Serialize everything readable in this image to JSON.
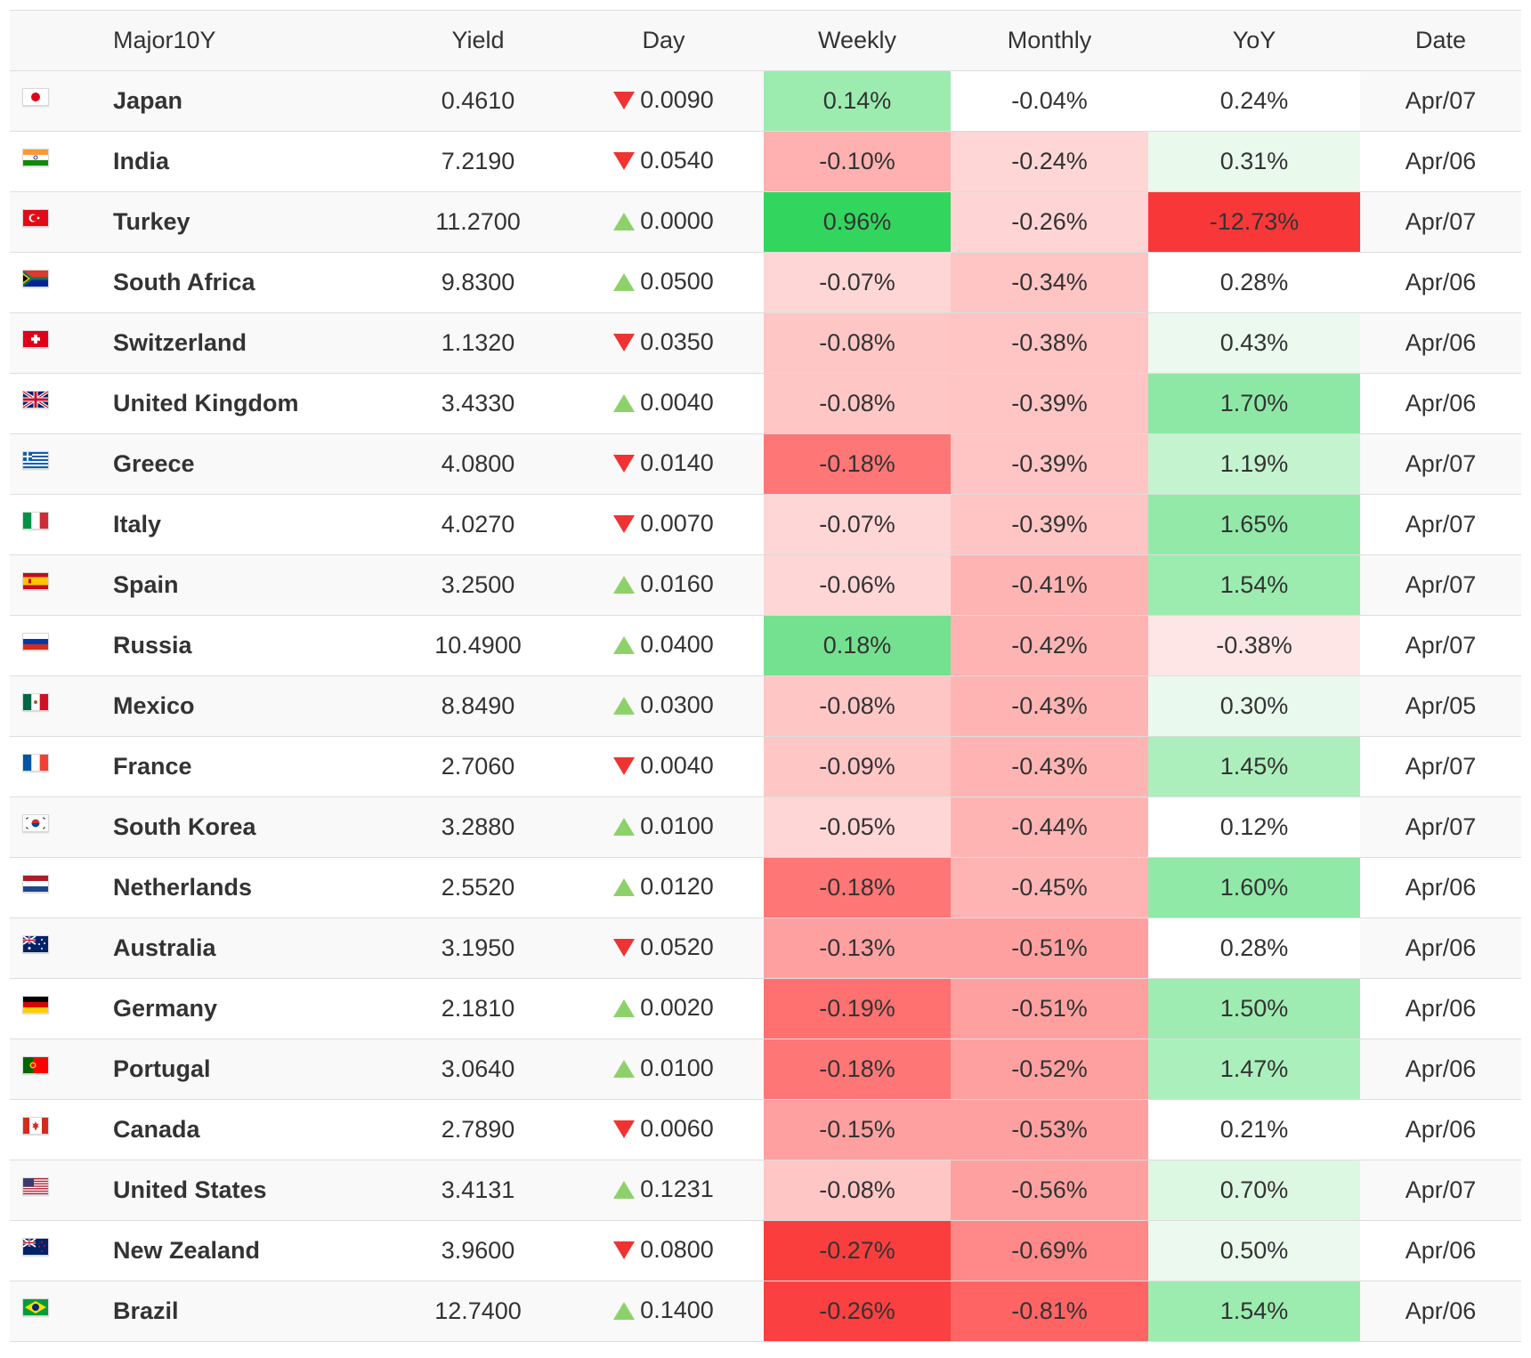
{
  "columns": [
    "Major10Y",
    "Yield",
    "Day",
    "Weekly",
    "Monthly",
    "YoY",
    "Date"
  ],
  "rows": [
    {
      "country": "Japan",
      "flag": "japan-flag-icon",
      "yield": "0.4610",
      "day_dir": "down",
      "day": "0.0090",
      "weekly": "0.14%",
      "weekly_bg": "#9cecb0",
      "monthly": "-0.04%",
      "monthly_bg": "#ffffff",
      "yoy": "0.24%",
      "yoy_bg": "#ffffff",
      "date": "Apr/07"
    },
    {
      "country": "India",
      "flag": "india-flag-icon",
      "yield": "7.2190",
      "day_dir": "down",
      "day": "0.0540",
      "weekly": "-0.10%",
      "weekly_bg": "#ffb0b0",
      "monthly": "-0.24%",
      "monthly_bg": "#ffd6d6",
      "yoy": "0.31%",
      "yoy_bg": "#e9f9ec",
      "date": "Apr/06"
    },
    {
      "country": "Turkey",
      "flag": "turkey-flag-icon",
      "yield": "11.2700",
      "day_dir": "up",
      "day": "0.0000",
      "weekly": "0.96%",
      "weekly_bg": "#32d65e",
      "monthly": "-0.26%",
      "monthly_bg": "#ffd4d4",
      "yoy": "-12.73%",
      "yoy_bg": "#f83838",
      "date": "Apr/07"
    },
    {
      "country": "South Africa",
      "flag": "south-africa-flag-icon",
      "yield": "9.8300",
      "day_dir": "up",
      "day": "0.0500",
      "weekly": "-0.07%",
      "weekly_bg": "#ffd6d6",
      "monthly": "-0.34%",
      "monthly_bg": "#ffc4c4",
      "yoy": "0.28%",
      "yoy_bg": "#ffffff",
      "date": "Apr/06"
    },
    {
      "country": "Switzerland",
      "flag": "switzerland-flag-icon",
      "yield": "1.1320",
      "day_dir": "down",
      "day": "0.0350",
      "weekly": "-0.08%",
      "weekly_bg": "#ffc6c6",
      "monthly": "-0.38%",
      "monthly_bg": "#ffc4c4",
      "yoy": "0.43%",
      "yoy_bg": "#ebf9ee",
      "date": "Apr/06"
    },
    {
      "country": "United Kingdom",
      "flag": "united-kingdom-flag-icon",
      "yield": "3.4330",
      "day_dir": "up",
      "day": "0.0040",
      "weekly": "-0.08%",
      "weekly_bg": "#ffc6c6",
      "monthly": "-0.39%",
      "monthly_bg": "#ffc4c4",
      "yoy": "1.70%",
      "yoy_bg": "#8ee8a5",
      "date": "Apr/06"
    },
    {
      "country": "Greece",
      "flag": "greece-flag-icon",
      "yield": "4.0800",
      "day_dir": "down",
      "day": "0.0140",
      "weekly": "-0.18%",
      "weekly_bg": "#ff7676",
      "monthly": "-0.39%",
      "monthly_bg": "#ffc4c4",
      "yoy": "1.19%",
      "yoy_bg": "#c4f3cf",
      "date": "Apr/07"
    },
    {
      "country": "Italy",
      "flag": "italy-flag-icon",
      "yield": "4.0270",
      "day_dir": "down",
      "day": "0.0070",
      "weekly": "-0.07%",
      "weekly_bg": "#ffd6d6",
      "monthly": "-0.39%",
      "monthly_bg": "#ffc4c4",
      "yoy": "1.65%",
      "yoy_bg": "#92e9a8",
      "date": "Apr/07"
    },
    {
      "country": "Spain",
      "flag": "spain-flag-icon",
      "yield": "3.2500",
      "day_dir": "up",
      "day": "0.0160",
      "weekly": "-0.06%",
      "weekly_bg": "#ffd6d6",
      "monthly": "-0.41%",
      "monthly_bg": "#ffb4b4",
      "yoy": "1.54%",
      "yoy_bg": "#9cecb0",
      "date": "Apr/07"
    },
    {
      "country": "Russia",
      "flag": "russia-flag-icon",
      "yield": "10.4900",
      "day_dir": "up",
      "day": "0.0400",
      "weekly": "0.18%",
      "weekly_bg": "#74e190",
      "monthly": "-0.42%",
      "monthly_bg": "#ffb4b4",
      "yoy": "-0.38%",
      "yoy_bg": "#ffe6e6",
      "date": "Apr/07"
    },
    {
      "country": "Mexico",
      "flag": "mexico-flag-icon",
      "yield": "8.8490",
      "day_dir": "up",
      "day": "0.0300",
      "weekly": "-0.08%",
      "weekly_bg": "#ffc6c6",
      "monthly": "-0.43%",
      "monthly_bg": "#ffb4b4",
      "yoy": "0.30%",
      "yoy_bg": "#eaf9ed",
      "date": "Apr/05"
    },
    {
      "country": "France",
      "flag": "france-flag-icon",
      "yield": "2.7060",
      "day_dir": "down",
      "day": "0.0040",
      "weekly": "-0.09%",
      "weekly_bg": "#ffc6c6",
      "monthly": "-0.43%",
      "monthly_bg": "#ffb4b4",
      "yoy": "1.45%",
      "yoy_bg": "#acefbd",
      "date": "Apr/07"
    },
    {
      "country": "South Korea",
      "flag": "south-korea-flag-icon",
      "yield": "3.2880",
      "day_dir": "up",
      "day": "0.0100",
      "weekly": "-0.05%",
      "weekly_bg": "#ffd6d6",
      "monthly": "-0.44%",
      "monthly_bg": "#ffb4b4",
      "yoy": "0.12%",
      "yoy_bg": "#ffffff",
      "date": "Apr/07"
    },
    {
      "country": "Netherlands",
      "flag": "netherlands-flag-icon",
      "yield": "2.5520",
      "day_dir": "up",
      "day": "0.0120",
      "weekly": "-0.18%",
      "weekly_bg": "#ff7676",
      "monthly": "-0.45%",
      "monthly_bg": "#ffb4b4",
      "yoy": "1.60%",
      "yoy_bg": "#90e9a7",
      "date": "Apr/06"
    },
    {
      "country": "Australia",
      "flag": "australia-flag-icon",
      "yield": "3.1950",
      "day_dir": "down",
      "day": "0.0520",
      "weekly": "-0.13%",
      "weekly_bg": "#ffa0a0",
      "monthly": "-0.51%",
      "monthly_bg": "#ffa0a0",
      "yoy": "0.28%",
      "yoy_bg": "#ffffff",
      "date": "Apr/06"
    },
    {
      "country": "Germany",
      "flag": "germany-flag-icon",
      "yield": "2.1810",
      "day_dir": "up",
      "day": "0.0020",
      "weekly": "-0.19%",
      "weekly_bg": "#ff7070",
      "monthly": "-0.51%",
      "monthly_bg": "#ffa0a0",
      "yoy": "1.50%",
      "yoy_bg": "#9eecb1",
      "date": "Apr/06"
    },
    {
      "country": "Portugal",
      "flag": "portugal-flag-icon",
      "yield": "3.0640",
      "day_dir": "up",
      "day": "0.0100",
      "weekly": "-0.18%",
      "weekly_bg": "#ff7676",
      "monthly": "-0.52%",
      "monthly_bg": "#ffa0a0",
      "yoy": "1.47%",
      "yoy_bg": "#aaefbc",
      "date": "Apr/06"
    },
    {
      "country": "Canada",
      "flag": "canada-flag-icon",
      "yield": "2.7890",
      "day_dir": "down",
      "day": "0.0060",
      "weekly": "-0.15%",
      "weekly_bg": "#ffa0a0",
      "monthly": "-0.53%",
      "monthly_bg": "#ffa0a0",
      "yoy": "0.21%",
      "yoy_bg": "#ffffff",
      "date": "Apr/06"
    },
    {
      "country": "United States",
      "flag": "united-states-flag-icon",
      "yield": "3.4131",
      "day_dir": "up",
      "day": "0.1231",
      "weekly": "-0.08%",
      "weekly_bg": "#ffc6c6",
      "monthly": "-0.56%",
      "monthly_bg": "#ffa0a0",
      "yoy": "0.70%",
      "yoy_bg": "#dcf7e2",
      "date": "Apr/07"
    },
    {
      "country": "New Zealand",
      "flag": "new-zealand-flag-icon",
      "yield": "3.9600",
      "day_dir": "down",
      "day": "0.0800",
      "weekly": "-0.27%",
      "weekly_bg": "#fa3e3e",
      "monthly": "-0.69%",
      "monthly_bg": "#ff8888",
      "yoy": "0.50%",
      "yoy_bg": "#ecf9ef",
      "date": "Apr/06"
    },
    {
      "country": "Brazil",
      "flag": "brazil-flag-icon",
      "yield": "12.7400",
      "day_dir": "up",
      "day": "0.1400",
      "weekly": "-0.26%",
      "weekly_bg": "#fa4040",
      "monthly": "-0.81%",
      "monthly_bg": "#fe6464",
      "yoy": "1.54%",
      "yoy_bg": "#9cecb0",
      "date": "Apr/06"
    }
  ]
}
